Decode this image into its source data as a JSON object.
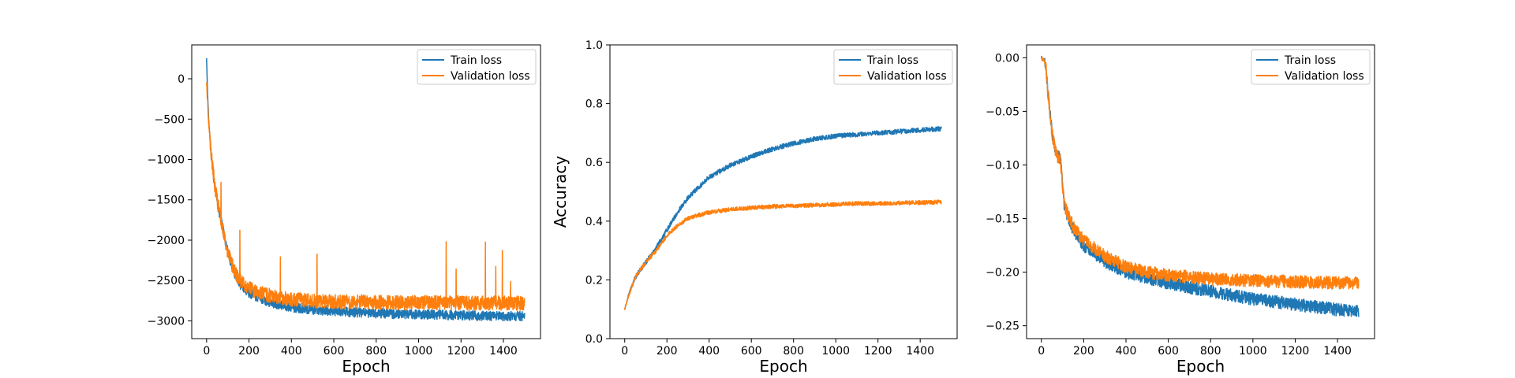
{
  "chart_data": [
    {
      "type": "line",
      "xlabel": "Epoch",
      "ylabel": "",
      "xlim": [
        -70,
        1575
      ],
      "ylim": [
        -3220,
        420
      ],
      "xticks": [
        0,
        200,
        400,
        600,
        800,
        1000,
        1200,
        1400
      ],
      "yticks": [
        0,
        -500,
        -1000,
        -1500,
        -2000,
        -2500,
        -3000
      ],
      "legend": "top-right",
      "series": [
        {
          "name": "Train loss",
          "color": "#1f77b4",
          "x": [
            0,
            5,
            10,
            20,
            40,
            60,
            80,
            100,
            130,
            160,
            200,
            250,
            300,
            400,
            500,
            600,
            700,
            800,
            900,
            1000,
            1100,
            1200,
            1300,
            1400,
            1500
          ],
          "y": [
            250,
            -200,
            -500,
            -900,
            -1350,
            -1650,
            -1900,
            -2150,
            -2400,
            -2550,
            -2650,
            -2720,
            -2770,
            -2830,
            -2860,
            -2880,
            -2895,
            -2905,
            -2915,
            -2920,
            -2925,
            -2930,
            -2935,
            -2940,
            -2945
          ],
          "noise": 60
        },
        {
          "name": "Validation loss",
          "color": "#ff7f0e",
          "x": [
            0,
            5,
            10,
            20,
            40,
            60,
            80,
            100,
            130,
            160,
            200,
            250,
            300,
            400,
            500,
            600,
            700,
            800,
            900,
            1000,
            1100,
            1200,
            1300,
            1400,
            1500
          ],
          "y": [
            -50,
            -300,
            -550,
            -900,
            -1350,
            -1650,
            -1900,
            -2150,
            -2380,
            -2500,
            -2600,
            -2650,
            -2690,
            -2730,
            -2750,
            -2760,
            -2765,
            -2770,
            -2772,
            -2775,
            -2777,
            -2778,
            -2780,
            -2780,
            -2780
          ],
          "noise": 90
        }
      ]
    },
    {
      "type": "line",
      "xlabel": "Epoch",
      "ylabel": "Accuracy",
      "xlim": [
        -70,
        1575
      ],
      "ylim": [
        0.0,
        1.0
      ],
      "xticks": [
        0,
        200,
        400,
        600,
        800,
        1000,
        1200,
        1400
      ],
      "yticks": [
        0.0,
        0.2,
        0.4,
        0.6,
        0.8,
        1.0
      ],
      "legend": "top-right",
      "series": [
        {
          "name": "Train loss",
          "color": "#1f77b4",
          "x": [
            0,
            20,
            50,
            100,
            150,
            200,
            250,
            300,
            400,
            500,
            600,
            700,
            800,
            900,
            1000,
            1100,
            1200,
            1300,
            1400,
            1500
          ],
          "y": [
            0.1,
            0.15,
            0.21,
            0.26,
            0.31,
            0.37,
            0.43,
            0.48,
            0.55,
            0.59,
            0.62,
            0.645,
            0.665,
            0.68,
            0.69,
            0.695,
            0.7,
            0.705,
            0.71,
            0.715
          ],
          "noise": 0.008
        },
        {
          "name": "Validation loss",
          "color": "#ff7f0e",
          "x": [
            0,
            20,
            50,
            100,
            150,
            200,
            250,
            300,
            400,
            500,
            600,
            700,
            800,
            900,
            1000,
            1100,
            1200,
            1300,
            1400,
            1500
          ],
          "y": [
            0.1,
            0.15,
            0.21,
            0.26,
            0.3,
            0.35,
            0.385,
            0.41,
            0.43,
            0.44,
            0.445,
            0.45,
            0.452,
            0.455,
            0.457,
            0.46,
            0.46,
            0.462,
            0.463,
            0.465
          ],
          "noise": 0.007
        }
      ]
    },
    {
      "type": "line",
      "xlabel": "Epoch",
      "ylabel": "",
      "xlim": [
        -70,
        1575
      ],
      "ylim": [
        -0.262,
        0.012
      ],
      "xticks": [
        0,
        200,
        400,
        600,
        800,
        1000,
        1200,
        1400
      ],
      "yticks": [
        0.0,
        -0.05,
        -0.1,
        -0.15,
        -0.2,
        -0.25
      ],
      "legend": "top-right",
      "series": [
        {
          "name": "Train loss",
          "color": "#1f77b4",
          "x": [
            0,
            20,
            30,
            50,
            70,
            90,
            100,
            110,
            150,
            200,
            300,
            400,
            500,
            600,
            800,
            1000,
            1200,
            1400,
            1500
          ],
          "y": [
            0.0,
            -0.005,
            -0.03,
            -0.07,
            -0.09,
            -0.095,
            -0.12,
            -0.14,
            -0.16,
            -0.175,
            -0.19,
            -0.2,
            -0.205,
            -0.21,
            -0.218,
            -0.225,
            -0.23,
            -0.235,
            -0.237
          ],
          "noise": 0.006
        },
        {
          "name": "Validation loss",
          "color": "#ff7f0e",
          "x": [
            0,
            20,
            30,
            50,
            70,
            90,
            100,
            110,
            150,
            200,
            300,
            400,
            500,
            600,
            800,
            1000,
            1200,
            1400,
            1500
          ],
          "y": [
            0.0,
            -0.005,
            -0.03,
            -0.07,
            -0.09,
            -0.095,
            -0.12,
            -0.138,
            -0.158,
            -0.17,
            -0.185,
            -0.195,
            -0.2,
            -0.203,
            -0.206,
            -0.208,
            -0.209,
            -0.21,
            -0.21
          ],
          "noise": 0.006
        }
      ]
    }
  ]
}
